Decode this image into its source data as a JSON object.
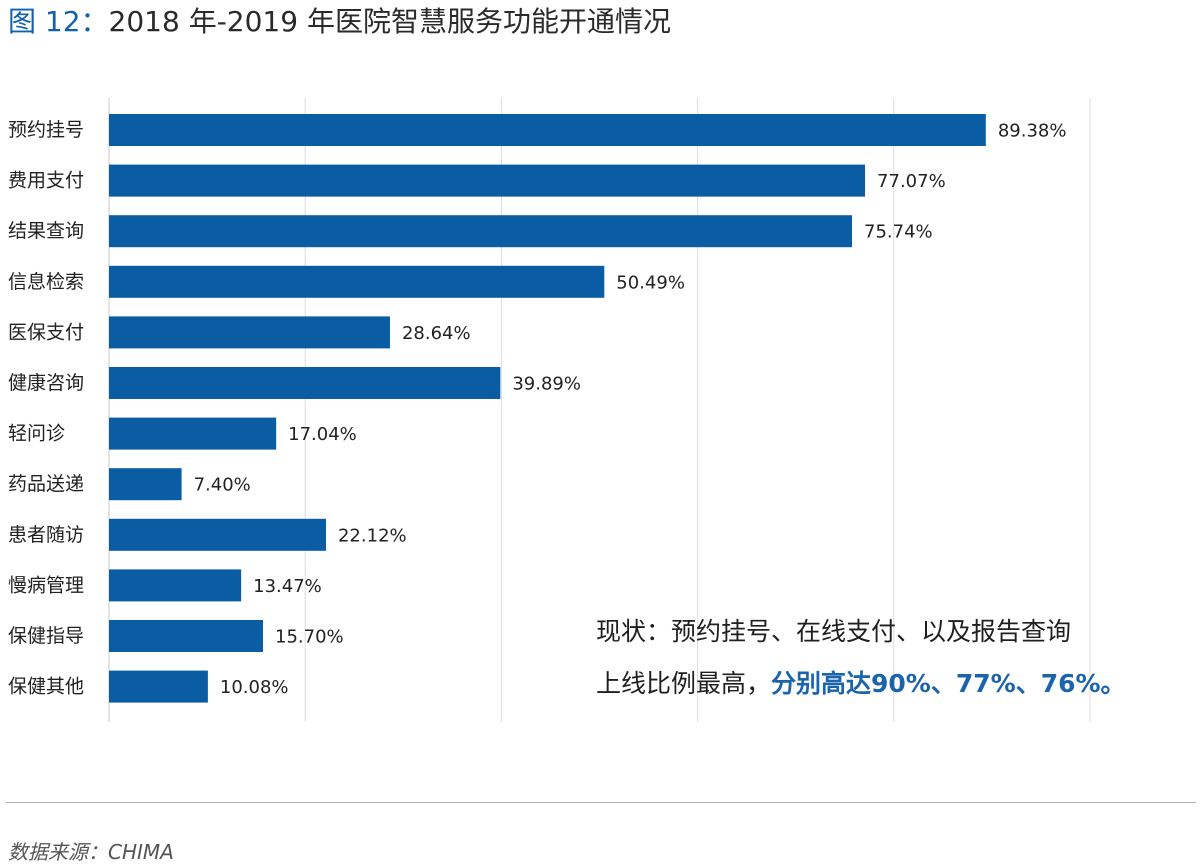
{
  "title": {
    "figure_label": "图 12：",
    "text": "2018 年-2019 年医院智慧服务功能开通情况"
  },
  "chart_data": {
    "type": "bar",
    "orientation": "horizontal",
    "categories": [
      "预约挂号",
      "费用支付",
      "结果查询",
      "信息检索",
      "医保支付",
      "健康咨询",
      "轻问诊",
      "药品送递",
      "患者随访",
      "慢病管理",
      "保健指导",
      "保健其他"
    ],
    "values": [
      89.38,
      77.07,
      75.74,
      50.49,
      28.64,
      39.89,
      17.04,
      7.4,
      22.12,
      13.47,
      15.7,
      10.08
    ],
    "value_labels": [
      "89.38%",
      "77.07%",
      "75.74%",
      "50.49%",
      "28.64%",
      "39.89%",
      "17.04%",
      "7.40%",
      "22.12%",
      "13.47%",
      "15.70%",
      "10.08%"
    ],
    "xlim": [
      0,
      100
    ],
    "grid": true,
    "legend": "none",
    "bar_color": "#0a5ca3",
    "grid_color": "#dcdcdc"
  },
  "annotation": {
    "line1": "现状：预约挂号、在线支付、以及报告查询",
    "line2_plain": "上线比例最高，",
    "line2_highlight": "分别高达90%、77%、76%。"
  },
  "source": "数据来源：CHIMA",
  "colors": {
    "accent": "#1a64ad",
    "title_label": "#1060b0"
  }
}
